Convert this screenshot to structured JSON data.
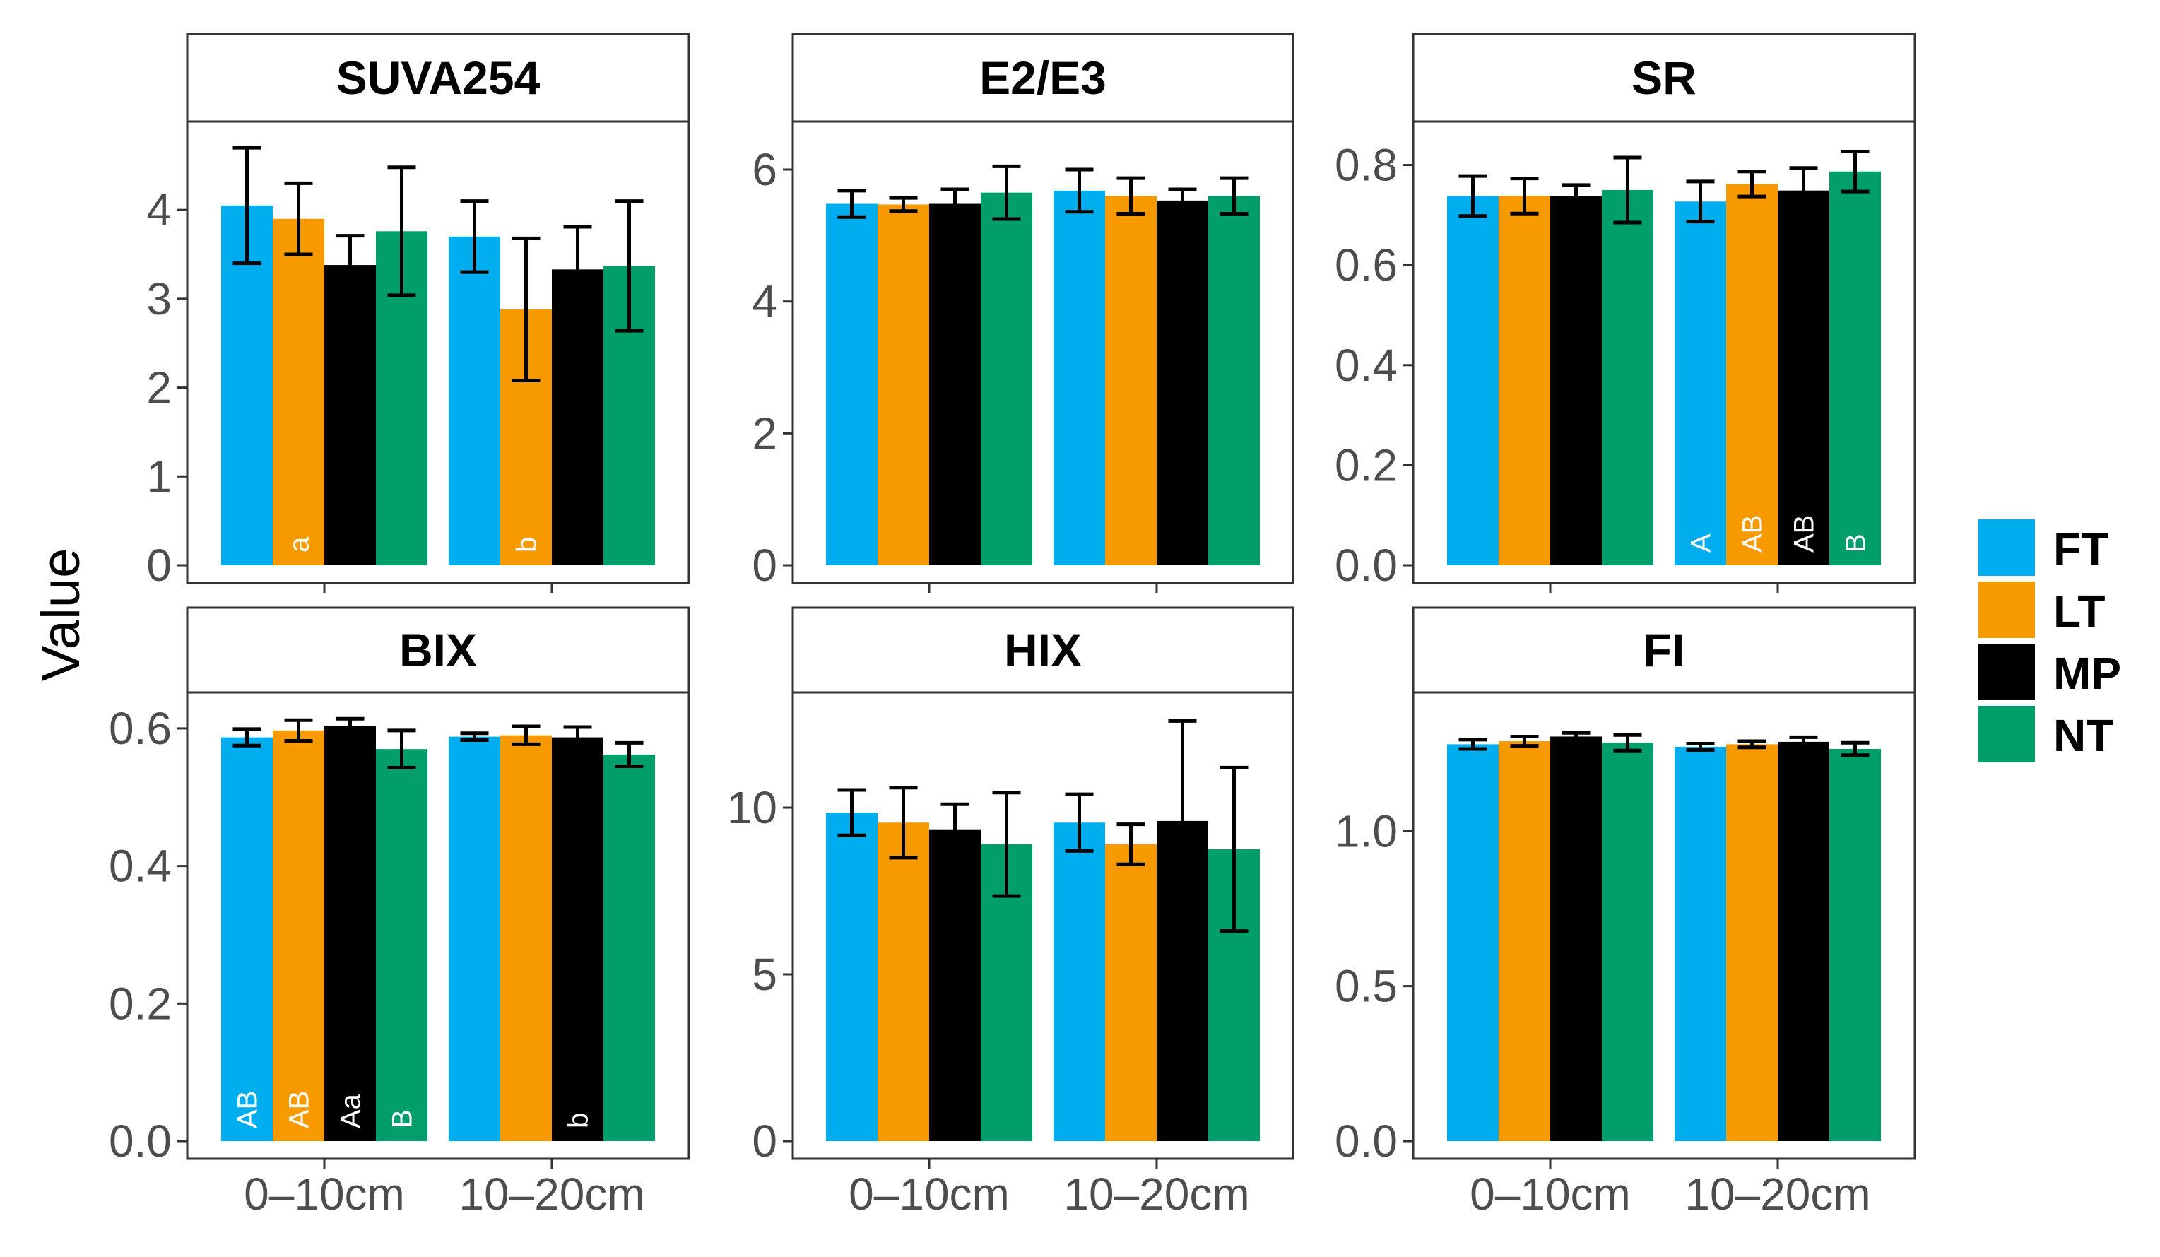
{
  "colors": {
    "FT": "#00AEEF",
    "LT": "#F79A00",
    "MP": "#000000",
    "NT": "#009E6B"
  },
  "chart_data": {
    "type": "bar",
    "ylabel": "Value",
    "legend": {
      "placement": "right",
      "entries": [
        "FT",
        "LT",
        "MP",
        "NT"
      ]
    },
    "x_categories": [
      "0–10cm",
      "10–20cm"
    ],
    "panels": [
      {
        "title": "SUVA254",
        "ylim": [
          0,
          4.9
        ],
        "yticks": [
          0,
          1,
          2,
          3,
          4
        ],
        "ytick_labels": [
          "0",
          "1",
          "2",
          "3",
          "4"
        ],
        "series": [
          {
            "name": "FT",
            "values": [
              4.05,
              3.7
            ],
            "errors": [
              0.65,
              0.4
            ],
            "labels": [
              "",
              ""
            ]
          },
          {
            "name": "LT",
            "values": [
              3.9,
              2.88
            ],
            "errors": [
              0.4,
              0.8
            ],
            "labels": [
              "a",
              "b"
            ]
          },
          {
            "name": "MP",
            "values": [
              3.38,
              3.33
            ],
            "errors": [
              0.33,
              0.48
            ],
            "labels": [
              "",
              ""
            ]
          },
          {
            "name": "NT",
            "values": [
              3.76,
              3.37
            ],
            "errors": [
              0.72,
              0.73
            ],
            "labels": [
              "",
              ""
            ]
          }
        ]
      },
      {
        "title": "E2/E3",
        "ylim": [
          0,
          6.6
        ],
        "yticks": [
          0,
          2,
          4,
          6
        ],
        "ytick_labels": [
          "0",
          "2",
          "4",
          "6"
        ],
        "series": [
          {
            "name": "FT",
            "values": [
              5.48,
              5.68
            ],
            "errors": [
              0.2,
              0.32
            ],
            "labels": [
              "",
              ""
            ]
          },
          {
            "name": "LT",
            "values": [
              5.47,
              5.6
            ],
            "errors": [
              0.1,
              0.27
            ],
            "labels": [
              "",
              ""
            ]
          },
          {
            "name": "MP",
            "values": [
              5.48,
              5.53
            ],
            "errors": [
              0.22,
              0.17
            ],
            "labels": [
              "",
              ""
            ]
          },
          {
            "name": "NT",
            "values": [
              5.65,
              5.6
            ],
            "errors": [
              0.4,
              0.27
            ],
            "labels": [
              "",
              ""
            ]
          }
        ]
      },
      {
        "title": "SR",
        "ylim": [
          0,
          0.87
        ],
        "yticks": [
          0,
          0.2,
          0.4,
          0.6,
          0.8
        ],
        "ytick_labels": [
          "0.0",
          "0.2",
          "0.4",
          "0.6",
          "0.8"
        ],
        "series": [
          {
            "name": "FT",
            "values": [
              0.738,
              0.727
            ],
            "errors": [
              0.04,
              0.04
            ],
            "labels": [
              "",
              "A"
            ]
          },
          {
            "name": "LT",
            "values": [
              0.738,
              0.762
            ],
            "errors": [
              0.035,
              0.025
            ],
            "labels": [
              "",
              "AB"
            ]
          },
          {
            "name": "MP",
            "values": [
              0.738,
              0.749
            ],
            "errors": [
              0.022,
              0.045
            ],
            "labels": [
              "",
              "AB"
            ]
          },
          {
            "name": "NT",
            "values": [
              0.75,
              0.787
            ],
            "errors": [
              0.065,
              0.04
            ],
            "labels": [
              "",
              "B"
            ]
          }
        ]
      },
      {
        "title": "BIX",
        "ylim": [
          0,
          0.64
        ],
        "yticks": [
          0,
          0.2,
          0.4,
          0.6
        ],
        "ytick_labels": [
          "0.0",
          "0.2",
          "0.4",
          "0.6"
        ],
        "series": [
          {
            "name": "FT",
            "values": [
              0.587,
              0.588
            ],
            "errors": [
              0.012,
              0.005
            ],
            "labels": [
              "AB",
              ""
            ]
          },
          {
            "name": "LT",
            "values": [
              0.597,
              0.59
            ],
            "errors": [
              0.015,
              0.013
            ],
            "labels": [
              "AB",
              ""
            ]
          },
          {
            "name": "MP",
            "values": [
              0.604,
              0.587
            ],
            "errors": [
              0.01,
              0.015
            ],
            "labels": [
              "Aa",
              "b"
            ]
          },
          {
            "name": "NT",
            "values": [
              0.57,
              0.562
            ],
            "errors": [
              0.027,
              0.017
            ],
            "labels": [
              "B",
              ""
            ]
          }
        ]
      },
      {
        "title": "HIX",
        "ylim": [
          0,
          13.2
        ],
        "yticks": [
          0,
          5,
          10
        ],
        "ytick_labels": [
          "0",
          "5",
          "10"
        ],
        "series": [
          {
            "name": "FT",
            "values": [
              9.85,
              9.55
            ],
            "errors": [
              0.68,
              0.85
            ],
            "labels": [
              "",
              ""
            ]
          },
          {
            "name": "LT",
            "values": [
              9.55,
              8.9
            ],
            "errors": [
              1.05,
              0.6
            ],
            "labels": [
              "",
              ""
            ]
          },
          {
            "name": "MP",
            "values": [
              9.35,
              9.6
            ],
            "errors": [
              0.75,
              3.0
            ],
            "labels": [
              "",
              ""
            ]
          },
          {
            "name": "NT",
            "values": [
              8.9,
              8.75
            ],
            "errors": [
              1.55,
              2.45
            ],
            "labels": [
              "",
              ""
            ]
          }
        ]
      },
      {
        "title": "FI",
        "ylim": [
          0,
          1.42
        ],
        "yticks": [
          0,
          0.5,
          1.0
        ],
        "ytick_labels": [
          "0.0",
          "0.5",
          "1.0"
        ],
        "series": [
          {
            "name": "FT",
            "values": [
              1.28,
              1.272
            ],
            "errors": [
              0.015,
              0.01
            ],
            "labels": [
              "",
              ""
            ]
          },
          {
            "name": "LT",
            "values": [
              1.29,
              1.28
            ],
            "errors": [
              0.015,
              0.01
            ],
            "labels": [
              "",
              ""
            ]
          },
          {
            "name": "MP",
            "values": [
              1.305,
              1.288
            ],
            "errors": [
              0.012,
              0.015
            ],
            "labels": [
              "",
              ""
            ]
          },
          {
            "name": "NT",
            "values": [
              1.285,
              1.265
            ],
            "errors": [
              0.025,
              0.02
            ],
            "labels": [
              "",
              ""
            ]
          }
        ]
      }
    ]
  }
}
